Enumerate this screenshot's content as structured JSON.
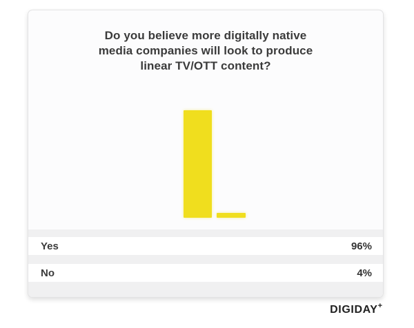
{
  "card": {
    "title": "Do you believe more digitally native media companies will look to produce linear TV/OTT content?",
    "title_lines": [
      "Do you believe more digitally native",
      "media companies will look to produce",
      "linear TV/OTT content?"
    ],
    "results": [
      {
        "label": "Yes",
        "value": "96%"
      },
      {
        "label": "No",
        "value": "4%"
      }
    ]
  },
  "branding": {
    "logo_text": "DIGIDAY",
    "logo_plus": "+"
  },
  "colors": {
    "bar": "#f0de1e",
    "title_text": "#3b3b3b",
    "row_background": "#ffffff",
    "section_background": "#f0f0f1",
    "card_background": "#fcfcfd",
    "logo_text": "#1f1f1f"
  },
  "chart_data": {
    "type": "bar",
    "title": "Do you believe more digitally native media companies will look to produce linear TV/OTT content?",
    "categories": [
      "Yes",
      "No"
    ],
    "values": [
      96,
      4
    ],
    "value_labels": [
      "96%",
      "4%"
    ],
    "xlabel": "",
    "ylabel": "",
    "ylim": [
      0,
      100
    ],
    "grid": false,
    "legend": false,
    "bar_color": "#f0de1e",
    "orientation": "vertical",
    "axis_labels_shown": false,
    "legend_position": "none"
  }
}
